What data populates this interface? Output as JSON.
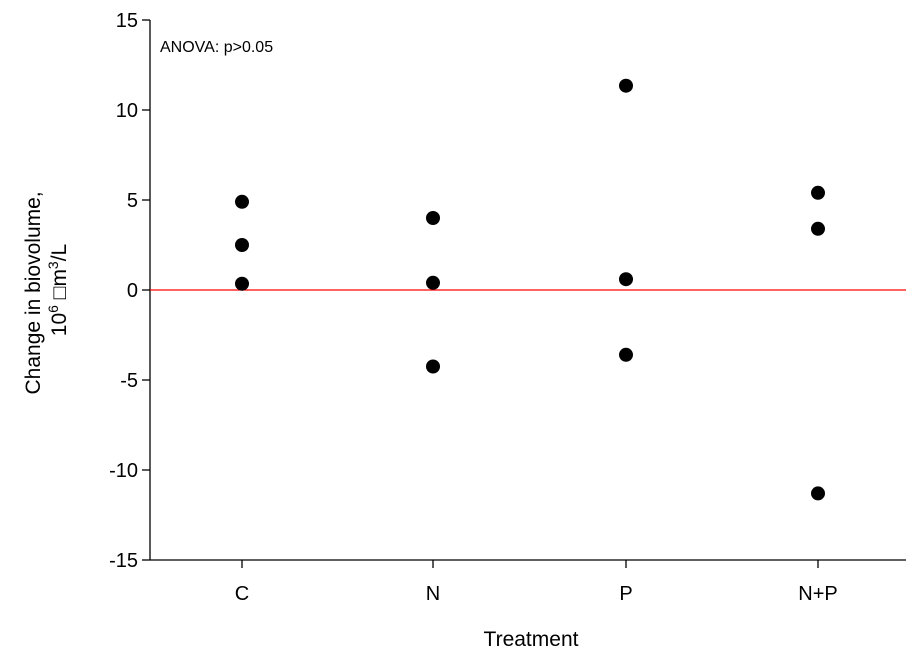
{
  "chart_data": {
    "type": "scatter",
    "categories": [
      "C",
      "N",
      "P",
      "N+P"
    ],
    "series": [
      {
        "points": [
          {
            "x": "C",
            "y": 4.9
          },
          {
            "x": "C",
            "y": 2.5
          },
          {
            "x": "C",
            "y": 0.35
          },
          {
            "x": "N",
            "y": 4.0
          },
          {
            "x": "N",
            "y": 0.4
          },
          {
            "x": "N",
            "y": -4.25
          },
          {
            "x": "P",
            "y": 11.35
          },
          {
            "x": "P",
            "y": 0.6
          },
          {
            "x": "P",
            "y": -3.6
          },
          {
            "x": "N+P",
            "y": 5.4
          },
          {
            "x": "N+P",
            "y": 3.4
          },
          {
            "x": "N+P",
            "y": -11.3
          }
        ]
      }
    ],
    "reference_line": {
      "y": 0,
      "color": "#ff0000"
    },
    "xlabel": "Treatment",
    "ylabel_line1": "Change in biovolume,",
    "ylabel_line2_prefix": "10",
    "ylabel_line2_exp": "6",
    "ylabel_line2_mid": " □m",
    "ylabel_line2_exp2": "3",
    "ylabel_line2_suffix": "/L",
    "ylim": [
      -15,
      15
    ],
    "yticks": [
      -15,
      -10,
      -5,
      0,
      5,
      10,
      15
    ],
    "annotation": "ANOVA: p>0.05",
    "grid": false,
    "marker_color": "#000000"
  }
}
